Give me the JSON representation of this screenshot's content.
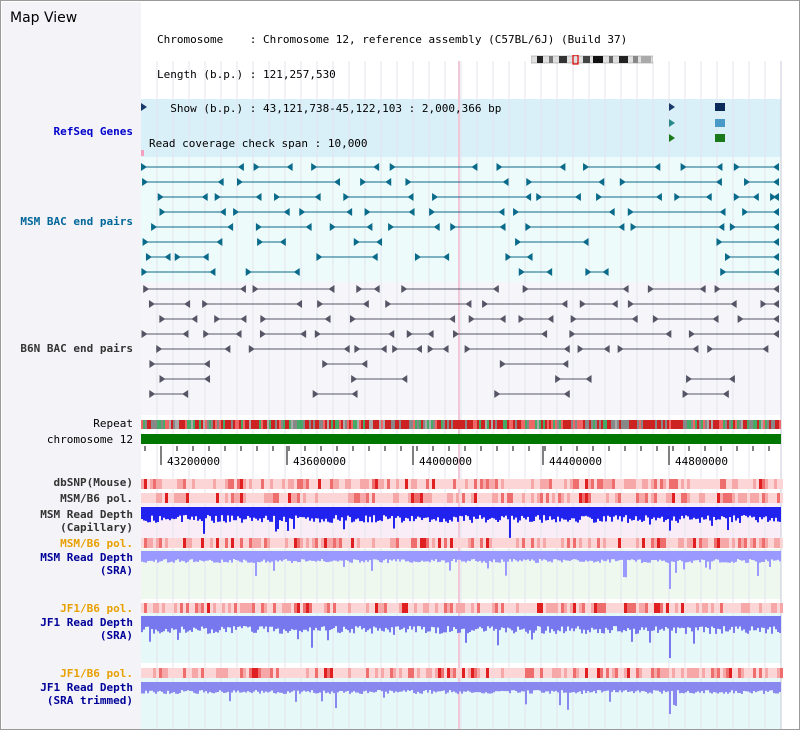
{
  "title": "Map View",
  "info": {
    "chromosome_label": "Chromosome    ",
    "chromosome_value": ": Chromosome 12, reference assembly (C57BL/6J) (Build 37)",
    "length_label": "Length (b.p.)",
    "length_value": " : 121,257,530",
    "show_label": "  Show (b.p.)",
    "show_value": " : 43,121,738-45,122,103 : 2,000,366 bp",
    "coverage_label": "Read coverage check span",
    "coverage_value": " : 10,000"
  },
  "tracks": {
    "refseq": "RefSeq Genes",
    "msm_bac": "MSM BAC end pairs",
    "b6n_bac": "B6N BAC end pairs",
    "repeat": "Repeat",
    "chromosome": "chromosome 12",
    "dbsnp": "dbSNP(Mouse)",
    "msm_b6_pol_1": "MSM/B6 pol.",
    "msm_read_depth_cap_1": "MSM Read Depth",
    "msm_read_depth_cap_2": "(Capillary)",
    "msm_b6_pol_2": "MSM/B6 pol.",
    "msm_read_depth_sra_1": "MSM Read Depth",
    "msm_read_depth_sra_2": "(SRA)",
    "jf1_b6_pol_1": "JF1/B6 pol.",
    "jf1_read_depth_sra_1": "JF1 Read Depth",
    "jf1_read_depth_sra_2": "(SRA)",
    "jf1_b6_pol_2": "JF1/B6 pol.",
    "jf1_read_depth_trim_1": "JF1 Read Depth",
    "jf1_read_depth_trim_2": "(SRA trimmed)"
  },
  "axis_ticks": [
    "43200000",
    "43600000",
    "44000000",
    "44400000",
    "44800000"
  ],
  "colors": {
    "refseq_label": "#0000cc",
    "msm_label": "#006699",
    "b6n_label": "#333333",
    "pol_label": "#e8a000",
    "depth_label": "#000099",
    "chromosome_bar": "#007700",
    "depth_bar_dark": "#2222ee",
    "depth_bar_light": "#9999ff"
  }
}
